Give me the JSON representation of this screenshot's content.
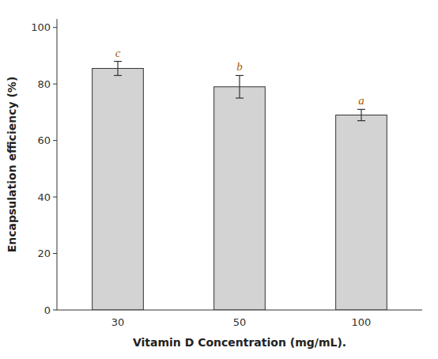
{
  "chart_data": {
    "type": "bar",
    "categories": [
      "30",
      "50",
      "100"
    ],
    "values": [
      85.5,
      79.0,
      69.0
    ],
    "errors": [
      2.5,
      4.0,
      2.0
    ],
    "annotations": [
      "c",
      "b",
      "a"
    ],
    "color": "#d3d3d3",
    "xlabel": "Vitamin D Concentration (mg/mL).",
    "ylabel": "Encapsulation efficiency (%)",
    "ylim": [
      0,
      103
    ],
    "yticks": [
      0,
      20,
      40,
      60,
      80,
      100
    ],
    "grid": false
  }
}
